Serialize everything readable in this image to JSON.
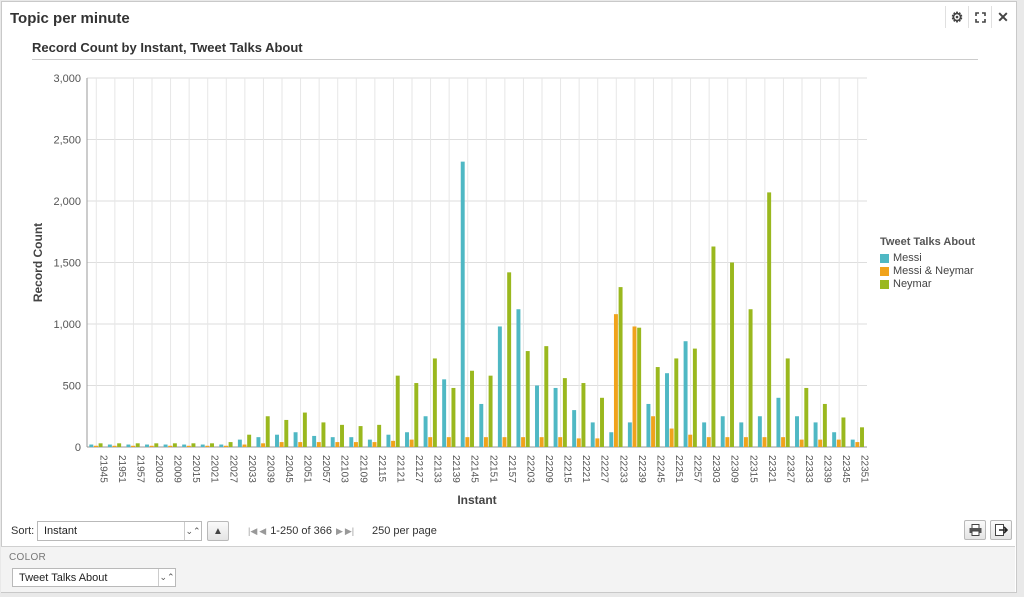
{
  "panel": {
    "title": "Topic per minute"
  },
  "icons": {
    "settings": "gear-icon",
    "expand": "expand-icon",
    "close": "close-icon"
  },
  "chart": {
    "title": "Record Count by Instant, Tweet Talks About",
    "ylabel": "Record Count",
    "xlabel": "Instant",
    "y_ticks": [
      "0",
      "500",
      "1,000",
      "1,500",
      "2,000",
      "2,500",
      "3,000"
    ],
    "x_ticks": [
      "21945",
      "21951",
      "21957",
      "22003",
      "22009",
      "22015",
      "22021",
      "22027",
      "22033",
      "22039",
      "22045",
      "22051",
      "22057",
      "22103",
      "22109",
      "22115",
      "22121",
      "22127",
      "22133",
      "22139",
      "22145",
      "22151",
      "22157",
      "22203",
      "22209",
      "22215",
      "22221",
      "22227",
      "22233",
      "22239",
      "22245",
      "22251",
      "22257",
      "22303",
      "22309",
      "22315",
      "22321",
      "22327",
      "22333",
      "22339",
      "22345",
      "22351"
    ]
  },
  "legend": {
    "title": "Tweet Talks About",
    "items": [
      {
        "label": "Messi",
        "color": "#4fb8c4"
      },
      {
        "label": "Messi & Neymar",
        "color": "#f0a31c"
      },
      {
        "label": "Neymar",
        "color": "#9ab81e"
      }
    ]
  },
  "controls": {
    "sort_label": "Sort:",
    "sort_value": "Instant",
    "pager_text": "1-250 of 366",
    "per_page": "250 per page"
  },
  "color_section": {
    "label": "COLOR",
    "value": "Tweet Talks About"
  },
  "chart_data": {
    "type": "bar",
    "title": "Record Count by Instant, Tweet Talks About",
    "xlabel": "Instant",
    "ylabel": "Record Count",
    "ylim": [
      0,
      3000
    ],
    "grid": true,
    "legend_position": "right",
    "categories": [
      "21945",
      "21951",
      "21957",
      "22003",
      "22009",
      "22015",
      "22021",
      "22027",
      "22033",
      "22039",
      "22045",
      "22051",
      "22057",
      "22103",
      "22109",
      "22115",
      "22121",
      "22127",
      "22133",
      "22139",
      "22145",
      "22151",
      "22157",
      "22203",
      "22209",
      "22215",
      "22221",
      "22227",
      "22233",
      "22239",
      "22245",
      "22251",
      "22257",
      "22303",
      "22309",
      "22315",
      "22321",
      "22327",
      "22333",
      "22339",
      "22345",
      "22351"
    ],
    "series": [
      {
        "name": "Messi",
        "color": "#4fb8c4",
        "values": [
          20,
          20,
          20,
          20,
          20,
          20,
          20,
          20,
          60,
          80,
          100,
          120,
          90,
          80,
          80,
          60,
          100,
          120,
          250,
          550,
          2320,
          350,
          980,
          1120,
          500,
          480,
          300,
          200,
          120,
          200,
          350,
          600,
          860,
          200,
          250,
          200,
          250,
          400,
          250,
          200,
          120,
          60
        ]
      },
      {
        "name": "Messi & Neymar",
        "color": "#f0a31c",
        "values": [
          10,
          10,
          10,
          10,
          10,
          10,
          10,
          10,
          20,
          30,
          40,
          40,
          40,
          40,
          40,
          40,
          50,
          60,
          80,
          80,
          80,
          80,
          80,
          80,
          80,
          80,
          70,
          70,
          1080,
          980,
          250,
          150,
          100,
          80,
          80,
          80,
          80,
          80,
          60,
          60,
          60,
          40
        ]
      },
      {
        "name": "Neymar",
        "color": "#9ab81e",
        "values": [
          30,
          30,
          30,
          30,
          30,
          30,
          30,
          40,
          100,
          250,
          220,
          280,
          200,
          180,
          170,
          180,
          580,
          520,
          720,
          480,
          620,
          580,
          1420,
          780,
          820,
          560,
          520,
          400,
          1300,
          970,
          650,
          720,
          800,
          1630,
          1500,
          1120,
          2070,
          720,
          480,
          350,
          240,
          160
        ]
      }
    ]
  }
}
